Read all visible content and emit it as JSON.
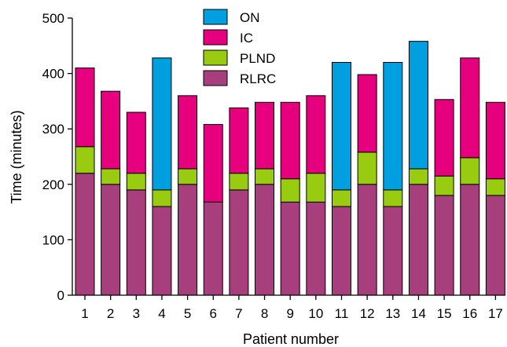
{
  "chart_data": {
    "type": "bar",
    "stacked": true,
    "xlabel": "Patient number",
    "ylabel": "Time (minutes)",
    "ylim": [
      0,
      500
    ],
    "yticks": [
      0,
      100,
      200,
      300,
      400,
      500
    ],
    "categories": [
      "1",
      "2",
      "3",
      "4",
      "5",
      "6",
      "7",
      "8",
      "9",
      "10",
      "11",
      "12",
      "13",
      "14",
      "15",
      "16",
      "17"
    ],
    "series": [
      {
        "name": "RLRC",
        "color": "#a63f7b",
        "values": [
          220,
          200,
          190,
          160,
          200,
          168,
          190,
          200,
          168,
          168,
          160,
          200,
          160,
          200,
          180,
          200,
          180
        ]
      },
      {
        "name": "PLND",
        "color": "#99cc11",
        "values": [
          48,
          28,
          30,
          30,
          28,
          0,
          30,
          28,
          42,
          52,
          30,
          58,
          30,
          28,
          35,
          48,
          30
        ]
      },
      {
        "name": "IC",
        "color": "#e6007e",
        "values": [
          142,
          140,
          110,
          0,
          132,
          140,
          118,
          120,
          138,
          140,
          0,
          140,
          0,
          0,
          138,
          180,
          138
        ]
      },
      {
        "name": "ON",
        "color": "#00a0e0",
        "values": [
          0,
          0,
          0,
          238,
          0,
          0,
          0,
          0,
          0,
          0,
          230,
          0,
          230,
          230,
          0,
          0,
          0
        ]
      }
    ],
    "legend": {
      "placement": "top-center",
      "order": [
        "ON",
        "IC",
        "PLND",
        "RLRC"
      ]
    },
    "grid": false
  }
}
